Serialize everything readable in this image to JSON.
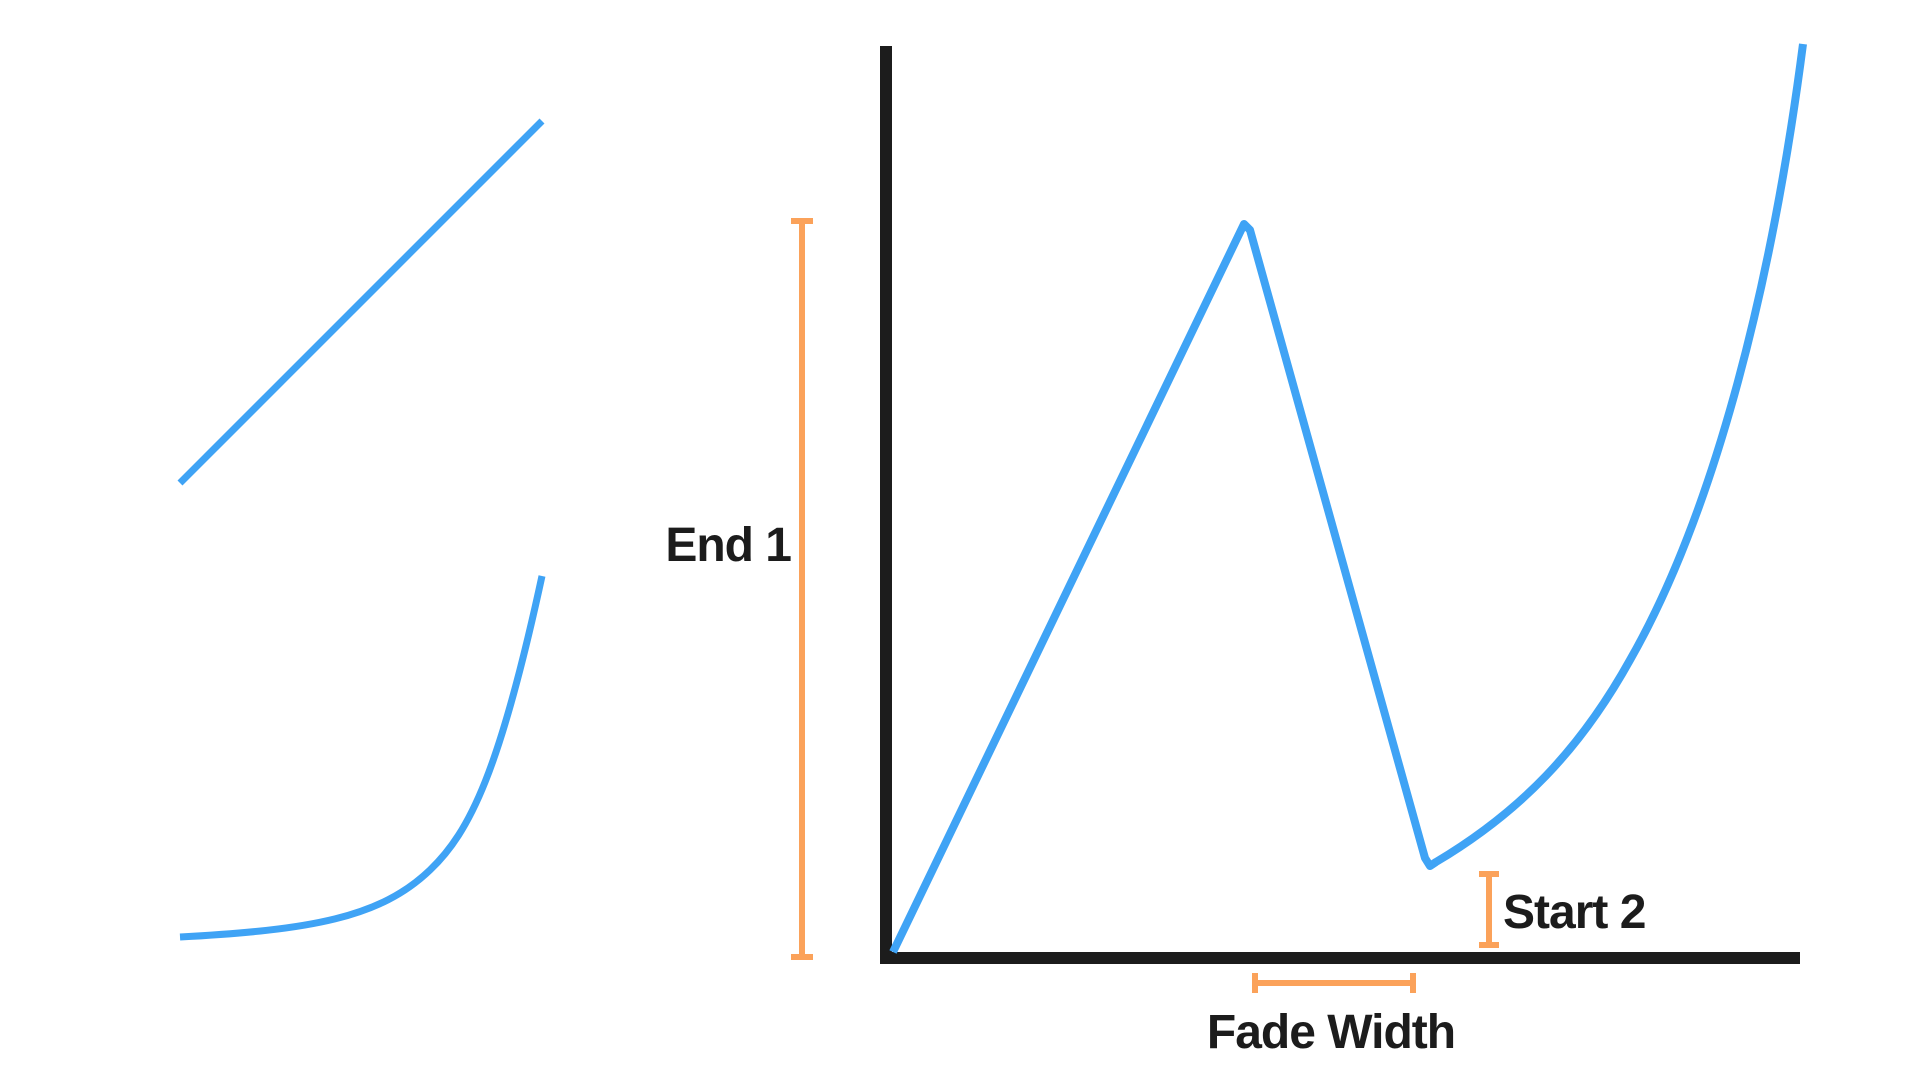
{
  "labels": {
    "end1": "End 1",
    "start2": "Start 2",
    "fade_width": "Fade Width"
  },
  "colors": {
    "curve": "#3fa3f5",
    "measure": "#fba25a",
    "axis": "#1c1c1c",
    "text": "#1c1c1c"
  },
  "icons": {
    "linear_ramp": "linear-curve-icon",
    "exponential_ramp": "exponential-curve-icon"
  }
}
